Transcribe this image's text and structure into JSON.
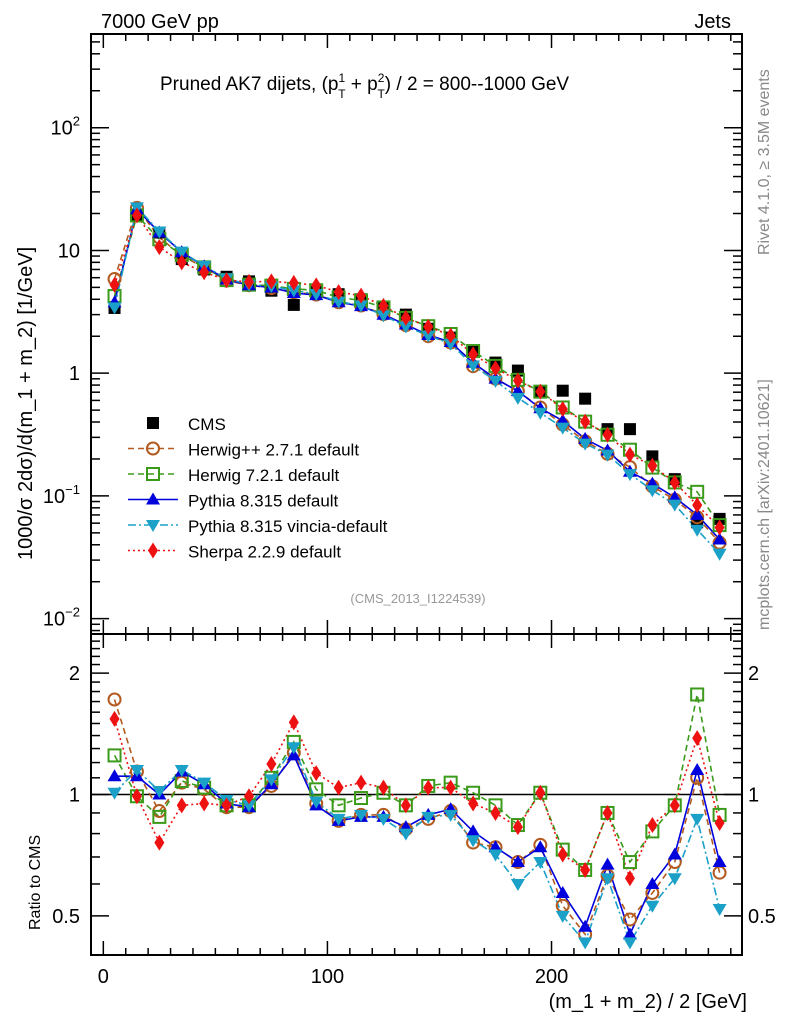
{
  "header": {
    "left_label": "7000 GeV pp",
    "right_label": "Jets",
    "side_label_top": "Rivet 4.1.0, ≥ 3.5M events",
    "side_label_bottom": "mcplots.cern.ch [arXiv:2401.10621]",
    "analysis_tag": "(CMS_2013_I1224539)"
  },
  "chart_data": [
    {
      "type": "scatter",
      "panel": "main",
      "title_parts": {
        "prefix": "Pruned AK7 dijets, (p",
        "sup1": "1",
        "sub1": "T",
        "mid": " + p",
        "sup2": "2",
        "sub2": "T",
        "suffix": ") / 2 = 800--1000 GeV"
      },
      "xlabel": "(m_1 + m_2) / 2 [GeV]",
      "ylabel": "1000/σ  2dσ)/d(m_1 + m_2) [1/GeV]",
      "xlim": [
        -5.5,
        285
      ],
      "ylim": [
        0.0075,
        580
      ],
      "yscale": "log",
      "ytick_labels": [
        {
          "value": 0.01,
          "base": "10",
          "exp": "−2"
        },
        {
          "value": 0.1,
          "base": "10",
          "exp": "−1"
        },
        {
          "value": 1,
          "base": "1",
          "exp": ""
        },
        {
          "value": 10,
          "base": "10",
          "exp": ""
        },
        {
          "value": 100,
          "base": "10",
          "exp": "2"
        }
      ],
      "legend_position": "center-left",
      "x": [
        5,
        15,
        25,
        35,
        45,
        55,
        65,
        75,
        85,
        95,
        105,
        115,
        125,
        135,
        145,
        155,
        165,
        175,
        185,
        195,
        205,
        215,
        225,
        235,
        245,
        255,
        265,
        275
      ],
      "series": [
        {
          "name": "CMS",
          "color": "#000000",
          "marker": "square-filled",
          "line": "none",
          "values": [
            3.4,
            19.5,
            14.0,
            8.5,
            7.0,
            6.1,
            5.6,
            4.7,
            3.6,
            4.6,
            4.4,
            4.0,
            3.4,
            3.0,
            2.3,
            1.95,
            1.5,
            1.22,
            1.05,
            0.7,
            0.72,
            0.62,
            0.35,
            0.35,
            0.21,
            0.137,
            0.061,
            0.065
          ]
        }
      ],
      "mc_series_from_ratio": true
    },
    {
      "type": "line",
      "panel": "ratio",
      "ylabel": "Ratio to CMS",
      "xlabel": "(m_1 + m_2) / 2 [GeV]",
      "xlim": [
        -5.5,
        285
      ],
      "ylim": [
        0.4,
        2.5
      ],
      "yscale": "log",
      "ytick_labels": [
        "0.5",
        "1",
        "2"
      ],
      "ytick_values": [
        0.5,
        1,
        2
      ],
      "xtick_labels": [
        "0",
        "100",
        "200"
      ],
      "xtick_values": [
        0,
        100,
        200
      ],
      "reference_line": 1,
      "x": [
        5,
        15,
        25,
        35,
        45,
        55,
        65,
        75,
        85,
        95,
        105,
        115,
        125,
        135,
        145,
        155,
        165,
        175,
        185,
        195,
        205,
        215,
        225,
        235,
        245,
        255,
        265,
        275
      ],
      "series": [
        {
          "name": "Herwig++ 2.7.1 default",
          "color": "#b35a1f",
          "marker": "circle-open",
          "line": "dashed",
          "values": [
            1.72,
            1.14,
            0.91,
            1.07,
            1.03,
            0.93,
            0.93,
            1.05,
            1.27,
            0.95,
            0.86,
            0.89,
            0.89,
            0.82,
            0.87,
            0.91,
            0.76,
            0.74,
            0.68,
            0.75,
            0.53,
            0.45,
            0.63,
            0.49,
            0.57,
            0.68,
            1.1,
            0.64
          ]
        },
        {
          "name": "Herwig 7.2.1 default",
          "color": "#3a9a1a",
          "marker": "square-open",
          "line": "dashed",
          "values": [
            1.25,
            0.99,
            0.88,
            1.08,
            1.04,
            0.94,
            0.94,
            1.1,
            1.35,
            1.03,
            0.94,
            0.98,
            1.01,
            0.94,
            1.05,
            1.07,
            1.01,
            0.94,
            0.84,
            1.01,
            0.73,
            0.65,
            0.9,
            0.68,
            0.81,
            0.94,
            1.77,
            0.89
          ]
        },
        {
          "name": "Pythia 8.315 default",
          "color": "#0000dd",
          "marker": "triangle-up",
          "line": "solid",
          "values": [
            1.11,
            1.11,
            1.0,
            1.14,
            1.06,
            0.95,
            0.93,
            1.06,
            1.25,
            0.94,
            0.86,
            0.88,
            0.88,
            0.83,
            0.89,
            0.92,
            0.81,
            0.74,
            0.68,
            0.74,
            0.57,
            0.47,
            0.67,
            0.45,
            0.6,
            0.71,
            1.15,
            0.68
          ]
        },
        {
          "name": "Pythia 8.315 vincia-default",
          "color": "#1ba0c8",
          "marker": "triangle-down",
          "line": "dashdot",
          "values": [
            1.01,
            1.15,
            1.02,
            1.15,
            1.07,
            0.97,
            0.94,
            1.09,
            1.31,
            0.96,
            0.87,
            0.89,
            0.87,
            0.8,
            0.88,
            0.89,
            0.77,
            0.71,
            0.6,
            0.68,
            0.5,
            0.43,
            0.62,
            0.43,
            0.53,
            0.62,
            0.87,
            0.52
          ]
        },
        {
          "name": "Sherpa 2.2.9 default",
          "color": "#ee1111",
          "marker": "diamond",
          "line": "dotted",
          "values": [
            1.54,
            0.99,
            0.76,
            0.94,
            0.95,
            0.94,
            0.99,
            1.19,
            1.51,
            1.13,
            1.04,
            1.07,
            1.04,
            0.94,
            1.04,
            1.04,
            0.95,
            0.9,
            0.83,
            1.01,
            0.71,
            0.65,
            0.9,
            0.62,
            0.84,
            0.94,
            1.38,
            0.85
          ]
        }
      ]
    }
  ]
}
